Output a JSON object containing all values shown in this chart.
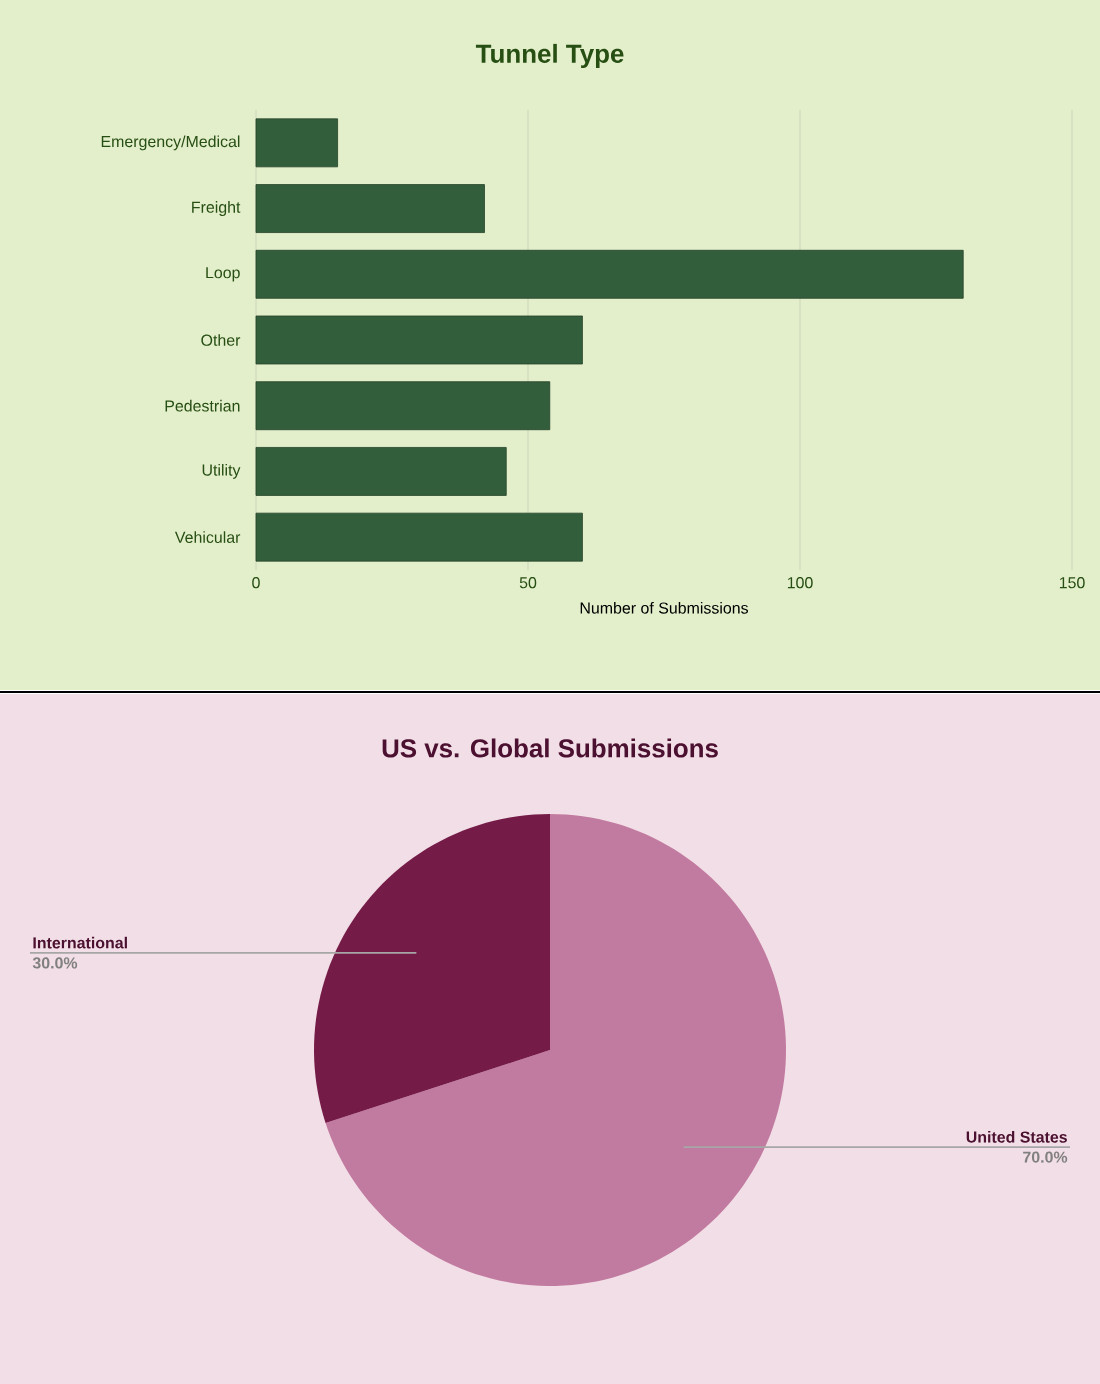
{
  "chart_data": [
    {
      "type": "bar",
      "title": "Tunnel Type",
      "orientation": "horizontal",
      "categories": [
        "Emergency/Medical",
        "Freight",
        "Loop",
        "Other",
        "Pedestrian",
        "Utility",
        "Vehicular"
      ],
      "values": [
        15,
        42,
        130,
        60,
        54,
        46,
        60
      ],
      "color": "#335e3b",
      "xlim": [
        0,
        150
      ],
      "xticks": [
        0,
        50,
        100,
        150
      ],
      "xlabel": "Number of Submissions",
      "grid": "x"
    },
    {
      "type": "pie",
      "title": "US vs. Global Submissions",
      "categories": [
        "United States",
        "International"
      ],
      "values": [
        70,
        30
      ],
      "colors": [
        "#c27ba0",
        "#741b47"
      ],
      "value_labels": [
        "70.0%",
        "30.0%"
      ]
    }
  ]
}
